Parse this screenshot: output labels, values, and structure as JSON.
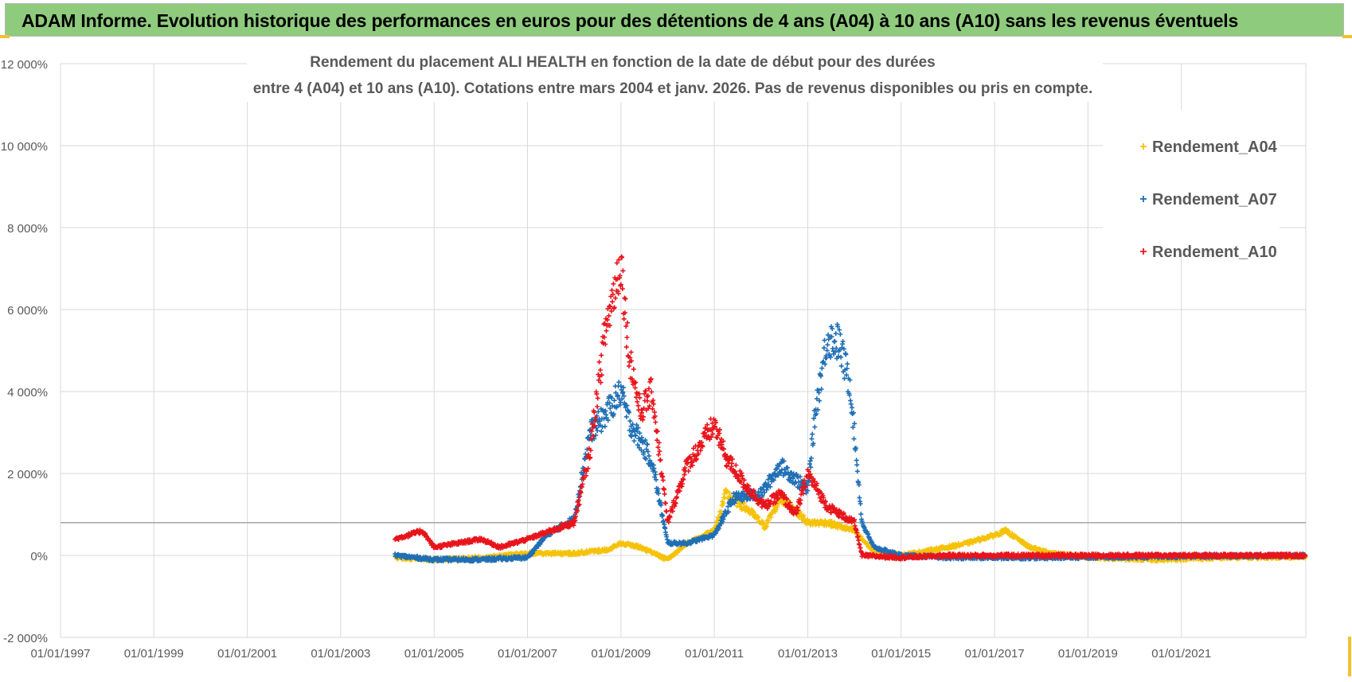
{
  "banner": {
    "title": "ADAM Informe. Evolution historique des performances en euros pour des détentions de 4 ans (A04) à 10 ans (A10) sans les revenus éventuels"
  },
  "colors": {
    "banner_bg": "#8fcb7d",
    "A04": "#f5c20a",
    "A07": "#1f6fb5",
    "A10": "#e8141b",
    "grid": "#d9d9d9",
    "accent": "#f2c12e"
  },
  "chart_data": {
    "type": "scatter",
    "title_line1": "Rendement du placement ALI HEALTH en fonction de la date de début pour des durées",
    "title_line2": "entre 4 (A04) et 10 ans (A10). Cotations entre mars 2004 et janv. 2026. Pas de revenus disponibles ou pris en compte.",
    "x_axis": {
      "type": "date",
      "range": [
        "1997-01-01",
        "2023-09-01"
      ],
      "tick_labels": [
        "01/01/1997",
        "01/01/1999",
        "01/01/2001",
        "01/01/2003",
        "01/01/2005",
        "01/01/2007",
        "01/01/2009",
        "01/01/2011",
        "01/01/2013",
        "01/01/2015",
        "01/01/2017",
        "01/01/2019",
        "01/01/2021"
      ]
    },
    "y_axis": {
      "range": [
        -2000,
        12000
      ],
      "unit": "%",
      "tick_labels": [
        "12 000%",
        "10 000%",
        "8 000%",
        "6 000%",
        "4 000%",
        "2 000%",
        "0%",
        "-2 000%"
      ],
      "tick_values": [
        12000,
        10000,
        8000,
        6000,
        4000,
        2000,
        0,
        -2000
      ]
    },
    "reference_line_y": 800,
    "grid": true,
    "legend": {
      "placement": "top-right",
      "marker": "+"
    },
    "series": [
      {
        "name": "Rendement_A04",
        "color": "#f5c20a",
        "points": [
          [
            "2004-03-01",
            -50
          ],
          [
            "2005-01-01",
            -100
          ],
          [
            "2006-01-01",
            -50
          ],
          [
            "2007-01-01",
            50
          ],
          [
            "2008-01-01",
            50
          ],
          [
            "2008-10-01",
            150
          ],
          [
            "2009-01-01",
            300
          ],
          [
            "2009-06-01",
            200
          ],
          [
            "2010-01-01",
            -100
          ],
          [
            "2010-06-01",
            300
          ],
          [
            "2011-01-01",
            600
          ],
          [
            "2011-04-01",
            1500
          ],
          [
            "2011-10-01",
            1100
          ],
          [
            "2012-02-01",
            700
          ],
          [
            "2012-06-01",
            1400
          ],
          [
            "2012-10-01",
            1100
          ],
          [
            "2013-01-01",
            800
          ],
          [
            "2013-06-01",
            800
          ],
          [
            "2014-01-01",
            600
          ],
          [
            "2014-06-01",
            100
          ],
          [
            "2015-01-01",
            0
          ],
          [
            "2016-01-01",
            200
          ],
          [
            "2016-06-01",
            300
          ],
          [
            "2017-01-01",
            500
          ],
          [
            "2017-04-01",
            600
          ],
          [
            "2017-10-01",
            200
          ],
          [
            "2018-04-01",
            50
          ],
          [
            "2019-01-01",
            -50
          ],
          [
            "2020-06-01",
            -100
          ],
          [
            "2022-01-01",
            -50
          ],
          [
            "2023-09-01",
            -30
          ]
        ]
      },
      {
        "name": "Rendement_A07",
        "color": "#1f6fb5",
        "points": [
          [
            "2004-03-01",
            0
          ],
          [
            "2005-01-01",
            -100
          ],
          [
            "2006-01-01",
            -100
          ],
          [
            "2007-01-01",
            -50
          ],
          [
            "2007-06-01",
            500
          ],
          [
            "2008-01-01",
            900
          ],
          [
            "2008-05-01",
            3000
          ],
          [
            "2008-08-01",
            3300
          ],
          [
            "2009-01-01",
            4000
          ],
          [
            "2009-03-01",
            3300
          ],
          [
            "2009-06-01",
            2800
          ],
          [
            "2009-09-01",
            2300
          ],
          [
            "2010-01-01",
            300
          ],
          [
            "2010-06-01",
            300
          ],
          [
            "2011-01-01",
            500
          ],
          [
            "2011-06-01",
            1400
          ],
          [
            "2012-01-01",
            1500
          ],
          [
            "2012-06-01",
            2200
          ],
          [
            "2013-01-01",
            1600
          ],
          [
            "2013-03-01",
            3500
          ],
          [
            "2013-06-01",
            5300
          ],
          [
            "2013-09-01",
            5200
          ],
          [
            "2013-12-01",
            4100
          ],
          [
            "2014-03-01",
            800
          ],
          [
            "2014-06-01",
            200
          ],
          [
            "2015-01-01",
            0
          ],
          [
            "2016-01-01",
            -50
          ],
          [
            "2018-01-01",
            -50
          ],
          [
            "2023-09-01",
            0
          ]
        ]
      },
      {
        "name": "Rendement_A10",
        "color": "#e8141b",
        "points": [
          [
            "2004-03-01",
            400
          ],
          [
            "2004-10-01",
            600
          ],
          [
            "2005-01-01",
            200
          ],
          [
            "2006-01-01",
            400
          ],
          [
            "2006-06-01",
            200
          ],
          [
            "2007-01-01",
            400
          ],
          [
            "2008-01-01",
            800
          ],
          [
            "2008-05-01",
            2500
          ],
          [
            "2008-09-01",
            5500
          ],
          [
            "2009-01-01",
            7200
          ],
          [
            "2009-03-01",
            5000
          ],
          [
            "2009-06-01",
            3500
          ],
          [
            "2009-09-01",
            4000
          ],
          [
            "2010-01-01",
            800
          ],
          [
            "2010-06-01",
            2200
          ],
          [
            "2011-01-01",
            3200
          ],
          [
            "2011-04-01",
            2400
          ],
          [
            "2011-10-01",
            1600
          ],
          [
            "2012-02-01",
            1200
          ],
          [
            "2012-06-01",
            1500
          ],
          [
            "2012-10-01",
            1000
          ],
          [
            "2013-01-01",
            2000
          ],
          [
            "2013-06-01",
            1200
          ],
          [
            "2014-01-01",
            800
          ],
          [
            "2014-03-01",
            0
          ],
          [
            "2015-01-01",
            -50
          ],
          [
            "2016-01-01",
            0
          ],
          [
            "2017-01-01",
            0
          ],
          [
            "2023-09-01",
            0
          ]
        ]
      }
    ]
  }
}
